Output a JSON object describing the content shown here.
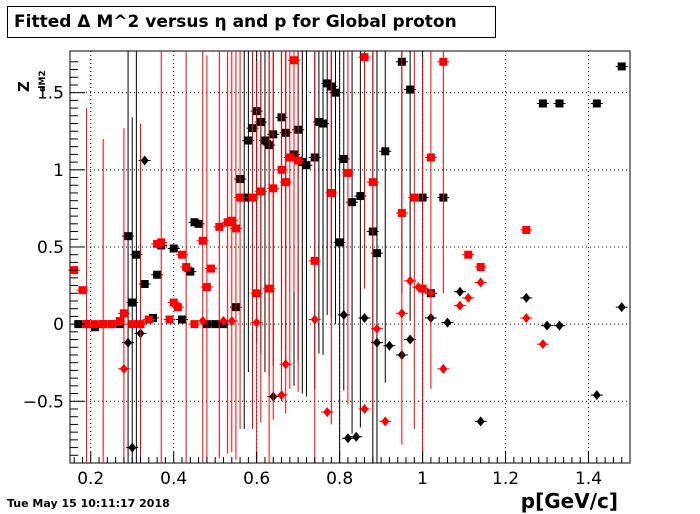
{
  "title": "Fitted Δ M^2 versus η and p for Global proton",
  "timestamp": "Tue May 15 10:11:17 2018",
  "colors": {
    "series_black": "#000000",
    "series_red": "#ff0000",
    "grid": "#000000",
    "background": "#ffffff"
  },
  "chart_data": {
    "type": "scatter",
    "title": "Fitted Δ M^2 versus η and p for Global proton",
    "xlabel": "p[GeV/c]",
    "ylabel": "Z",
    "ylabel_subscript": "dM2",
    "xlim": [
      0.15,
      1.5
    ],
    "ylim": [
      -0.9,
      1.77
    ],
    "grid": true,
    "x_ticks": [
      "0.2",
      "0.4",
      "0.6",
      "0.8",
      "1",
      "1.2",
      "1.4"
    ],
    "y_ticks": [
      "−0.5",
      "0",
      "0.5",
      "1",
      "1.5"
    ],
    "x_tick_values": [
      0.2,
      0.4,
      0.6,
      0.8,
      1.0,
      1.2,
      1.4
    ],
    "y_tick_values": [
      -0.5,
      0,
      0.5,
      1.0,
      1.5
    ],
    "series": [
      {
        "color": "#000000",
        "marker": "square",
        "points": [
          [
            0.17,
            0.0,
            0.0
          ],
          [
            0.19,
            0.0,
            0.0
          ],
          [
            0.21,
            -0.02,
            0.0
          ],
          [
            0.23,
            0.0,
            0.0
          ],
          [
            0.25,
            0.0,
            0.0
          ],
          [
            0.27,
            0.0,
            0.0
          ],
          [
            0.29,
            0.57,
            1.5
          ],
          [
            0.3,
            0.14,
            1.2
          ],
          [
            0.31,
            0.45,
            1.5
          ],
          [
            0.33,
            0.26,
            0.0
          ],
          [
            0.35,
            0.04,
            0.0
          ],
          [
            0.36,
            0.32,
            0.0
          ],
          [
            0.37,
            0.51,
            0.0
          ],
          [
            0.4,
            0.49,
            0.0
          ],
          [
            0.42,
            0.03,
            0.0
          ],
          [
            0.44,
            0.34,
            0.0
          ],
          [
            0.45,
            0.66,
            0.0
          ],
          [
            0.46,
            0.65,
            0.0
          ],
          [
            0.48,
            0.0,
            0.0
          ],
          [
            0.5,
            0.0,
            0.0
          ],
          [
            0.52,
            0.0,
            0.0
          ],
          [
            0.55,
            0.11,
            0.0
          ],
          [
            0.56,
            0.94,
            0.0
          ],
          [
            0.57,
            0.82,
            1.5
          ],
          [
            0.58,
            1.19,
            1.5
          ],
          [
            0.59,
            1.27,
            1.5
          ],
          [
            0.6,
            1.38,
            1.5
          ],
          [
            0.61,
            1.31,
            1.5
          ],
          [
            0.62,
            1.19,
            1.5
          ],
          [
            0.63,
            1.16,
            1.5
          ],
          [
            0.64,
            1.23,
            1.5
          ],
          [
            0.66,
            1.34,
            1.5
          ],
          [
            0.67,
            1.24,
            1.5
          ],
          [
            0.69,
            1.1,
            1.5
          ],
          [
            0.7,
            1.26,
            1.5
          ],
          [
            0.71,
            1.05,
            1.5
          ],
          [
            0.72,
            1.03,
            1.5
          ],
          [
            0.74,
            1.08,
            1.5
          ],
          [
            0.75,
            1.31,
            1.5
          ],
          [
            0.76,
            1.3,
            1.5
          ],
          [
            0.77,
            1.56,
            1.5
          ],
          [
            0.78,
            1.54,
            1.5
          ],
          [
            0.79,
            1.5,
            1.5
          ],
          [
            0.8,
            0.53,
            1.5
          ],
          [
            0.81,
            1.07,
            1.5
          ],
          [
            0.83,
            0.79,
            1.5
          ],
          [
            0.85,
            0.83,
            1.5
          ],
          [
            0.88,
            0.6,
            1.5
          ],
          [
            0.89,
            0.46,
            1.5
          ],
          [
            0.91,
            1.12,
            1.5
          ],
          [
            0.95,
            1.7,
            1.5
          ],
          [
            0.97,
            1.52,
            1.5
          ],
          [
            1.0,
            0.82,
            1.5
          ],
          [
            1.02,
            0.2,
            0.0
          ],
          [
            1.05,
            0.82,
            0.0
          ],
          [
            1.29,
            1.43,
            0.0
          ],
          [
            1.33,
            1.43,
            0.0
          ],
          [
            1.42,
            1.43,
            0.0
          ],
          [
            1.48,
            1.67,
            0.0
          ]
        ]
      },
      {
        "color": "#000000",
        "marker": "diamond",
        "points": [
          [
            0.29,
            -0.12,
            0.0
          ],
          [
            0.3,
            -0.8,
            0.0
          ],
          [
            0.32,
            -0.06,
            0.0
          ],
          [
            0.33,
            1.06,
            0.0
          ],
          [
            0.64,
            -0.47,
            0.0
          ],
          [
            0.81,
            0.06,
            0.0
          ],
          [
            0.82,
            -0.74,
            0.0
          ],
          [
            0.84,
            -0.73,
            0.0
          ],
          [
            0.86,
            0.04,
            0.0
          ],
          [
            0.89,
            -0.12,
            0.0
          ],
          [
            0.92,
            -0.14,
            0.0
          ],
          [
            0.95,
            -0.2,
            0.0
          ],
          [
            0.97,
            -0.1,
            0.0
          ],
          [
            1.02,
            0.04,
            0.0
          ],
          [
            1.06,
            0.01,
            0.0
          ],
          [
            1.09,
            0.21,
            0.0
          ],
          [
            1.14,
            -0.63,
            0.0
          ],
          [
            1.25,
            0.17,
            0.0
          ],
          [
            1.3,
            -0.01,
            0.0
          ],
          [
            1.33,
            -0.01,
            0.0
          ],
          [
            1.42,
            -0.46,
            0.0
          ],
          [
            1.48,
            0.11,
            0.0
          ]
        ]
      },
      {
        "color": "#ff0000",
        "marker": "square",
        "points": [
          [
            0.16,
            0.35,
            0.0
          ],
          [
            0.18,
            0.22,
            0.0
          ],
          [
            0.19,
            0.0,
            1.4
          ],
          [
            0.21,
            0.0,
            0.0
          ],
          [
            0.23,
            0.0,
            1.2
          ],
          [
            0.25,
            0.0,
            0.0
          ],
          [
            0.27,
            0.02,
            0.0
          ],
          [
            0.28,
            0.07,
            1.2
          ],
          [
            0.3,
            0.0,
            0.0
          ],
          [
            0.32,
            0.0,
            1.3
          ],
          [
            0.34,
            0.03,
            0.0
          ],
          [
            0.36,
            0.52,
            0.0
          ],
          [
            0.37,
            0.53,
            1.5
          ],
          [
            0.39,
            0.03,
            0.0
          ],
          [
            0.4,
            0.14,
            0.0
          ],
          [
            0.41,
            0.11,
            0.0
          ],
          [
            0.42,
            0.45,
            0.0
          ],
          [
            0.43,
            0.37,
            1.5
          ],
          [
            0.45,
            0.0,
            0.0
          ],
          [
            0.47,
            0.54,
            1.5
          ],
          [
            0.48,
            0.24,
            1.5
          ],
          [
            0.49,
            0.36,
            0.0
          ],
          [
            0.51,
            0.63,
            1.5
          ],
          [
            0.53,
            0.66,
            1.5
          ],
          [
            0.54,
            0.67,
            1.5
          ],
          [
            0.55,
            0.62,
            1.5
          ],
          [
            0.56,
            0.82,
            1.5
          ],
          [
            0.59,
            0.82,
            1.5
          ],
          [
            0.6,
            0.2,
            1.5
          ],
          [
            0.61,
            0.86,
            1.5
          ],
          [
            0.63,
            0.23,
            1.5
          ],
          [
            0.64,
            0.88,
            1.5
          ],
          [
            0.66,
            1.0,
            1.5
          ],
          [
            0.67,
            0.92,
            1.5
          ],
          [
            0.68,
            1.08,
            1.5
          ],
          [
            0.69,
            1.71,
            1.5
          ],
          [
            0.7,
            1.06,
            1.5
          ],
          [
            0.74,
            0.41,
            1.5
          ],
          [
            0.78,
            0.85,
            1.5
          ],
          [
            0.82,
            0.98,
            1.5
          ],
          [
            0.86,
            1.73,
            1.5
          ],
          [
            0.88,
            0.92,
            1.5
          ],
          [
            0.95,
            0.72,
            1.5
          ],
          [
            0.98,
            0.82,
            1.5
          ],
          [
            1.0,
            0.23,
            1.5
          ],
          [
            1.02,
            1.08,
            1.5
          ],
          [
            1.05,
            1.7,
            1.5
          ],
          [
            1.11,
            0.45,
            0.0
          ],
          [
            1.14,
            0.37,
            0.0
          ],
          [
            1.25,
            0.61,
            0.0
          ]
        ]
      },
      {
        "color": "#ff0000",
        "marker": "diamond",
        "points": [
          [
            0.28,
            -0.29,
            0.0
          ],
          [
            0.47,
            0.02,
            0.0
          ],
          [
            0.52,
            0.02,
            0.0
          ],
          [
            0.54,
            0.02,
            0.0
          ],
          [
            0.6,
            0.01,
            0.0
          ],
          [
            0.66,
            -0.46,
            0.0
          ],
          [
            0.67,
            -0.26,
            0.0
          ],
          [
            0.74,
            0.03,
            0.0
          ],
          [
            0.77,
            -0.57,
            0.0
          ],
          [
            0.86,
            -0.55,
            0.0
          ],
          [
            0.89,
            -0.03,
            0.0
          ],
          [
            0.91,
            -0.63,
            0.0
          ],
          [
            0.95,
            0.07,
            0.0
          ],
          [
            0.97,
            0.28,
            0.0
          ],
          [
            0.99,
            0.24,
            0.0
          ],
          [
            1.02,
            0.2,
            0.0
          ],
          [
            1.05,
            -0.29,
            0.0
          ],
          [
            1.09,
            0.12,
            0.0
          ],
          [
            1.11,
            0.17,
            0.0
          ],
          [
            1.14,
            0.27,
            0.0
          ],
          [
            1.25,
            0.04,
            0.0
          ],
          [
            1.29,
            -0.13,
            0.0
          ]
        ]
      }
    ]
  }
}
